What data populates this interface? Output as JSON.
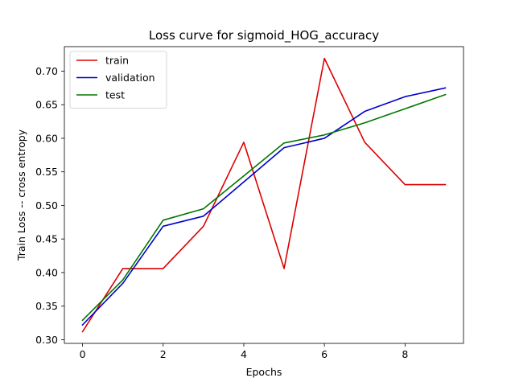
{
  "chart_data": {
    "type": "line",
    "title": "Loss curve for sigmoid_HOG_accuracy",
    "xlabel": "Epochs",
    "ylabel": "Train Loss -- cross entropy",
    "xlim": [
      -0.45,
      9.45
    ],
    "ylim": [
      0.2945,
      0.7365
    ],
    "xticks": [
      0,
      2,
      4,
      6,
      8
    ],
    "xtick_labels": [
      "0",
      "2",
      "4",
      "6",
      "8"
    ],
    "yticks": [
      0.3,
      0.35,
      0.4,
      0.45,
      0.5,
      0.55,
      0.6,
      0.65,
      0.7
    ],
    "ytick_labels": [
      "0.30",
      "0.35",
      "0.40",
      "0.45",
      "0.50",
      "0.55",
      "0.60",
      "0.65",
      "0.70"
    ],
    "grid": false,
    "legend_position": "upper-left",
    "x": [
      0,
      1,
      2,
      3,
      4,
      5,
      6,
      7,
      8,
      9
    ],
    "series": [
      {
        "name": "train",
        "color": "#dd0000",
        "values": [
          0.312,
          0.406,
          0.406,
          0.469,
          0.594,
          0.406,
          0.719,
          0.594,
          0.531,
          0.531
        ]
      },
      {
        "name": "validation",
        "color": "#0000cc",
        "values": [
          0.322,
          0.384,
          0.469,
          0.484,
          0.535,
          0.586,
          0.6,
          0.64,
          0.662,
          0.675
        ]
      },
      {
        "name": "test",
        "color": "#007700",
        "values": [
          0.329,
          0.389,
          0.478,
          0.495,
          0.544,
          0.593,
          0.605,
          0.623,
          0.644,
          0.665
        ]
      }
    ]
  }
}
